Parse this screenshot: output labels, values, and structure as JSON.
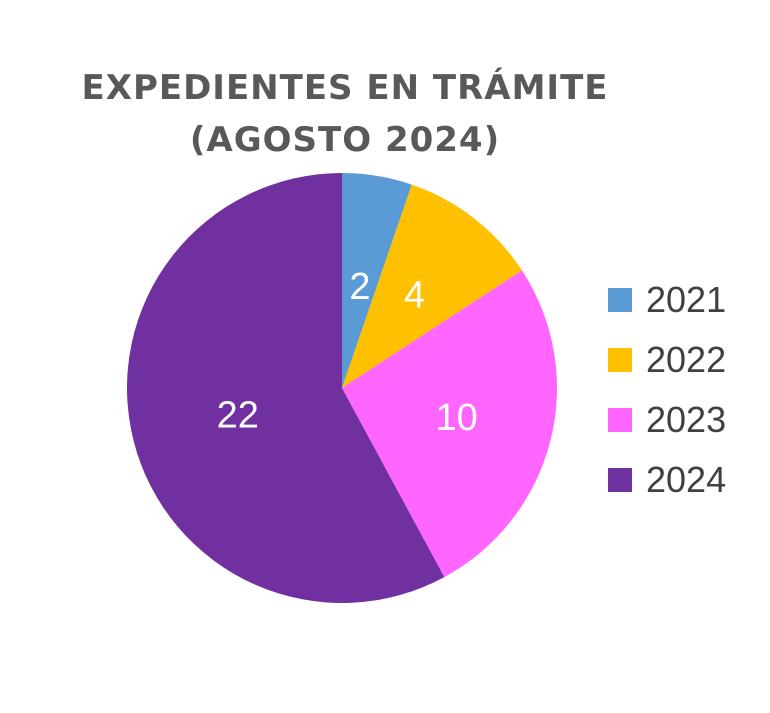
{
  "chart_data": {
    "type": "pie",
    "title": "EXPEDIENTES EN TRÁMITE",
    "subtitle": "(AGOSTO 2024)",
    "categories": [
      "2021",
      "2022",
      "2023",
      "2024"
    ],
    "values": [
      2,
      4,
      10,
      22
    ],
    "colors": [
      "#5b9bd5",
      "#ffc000",
      "#ff66ff",
      "#7030a0"
    ],
    "data_labels": [
      "2",
      "4",
      "10",
      "22"
    ],
    "legend_position": "right",
    "start_angle": "12 o'clock",
    "direction": "clockwise"
  }
}
